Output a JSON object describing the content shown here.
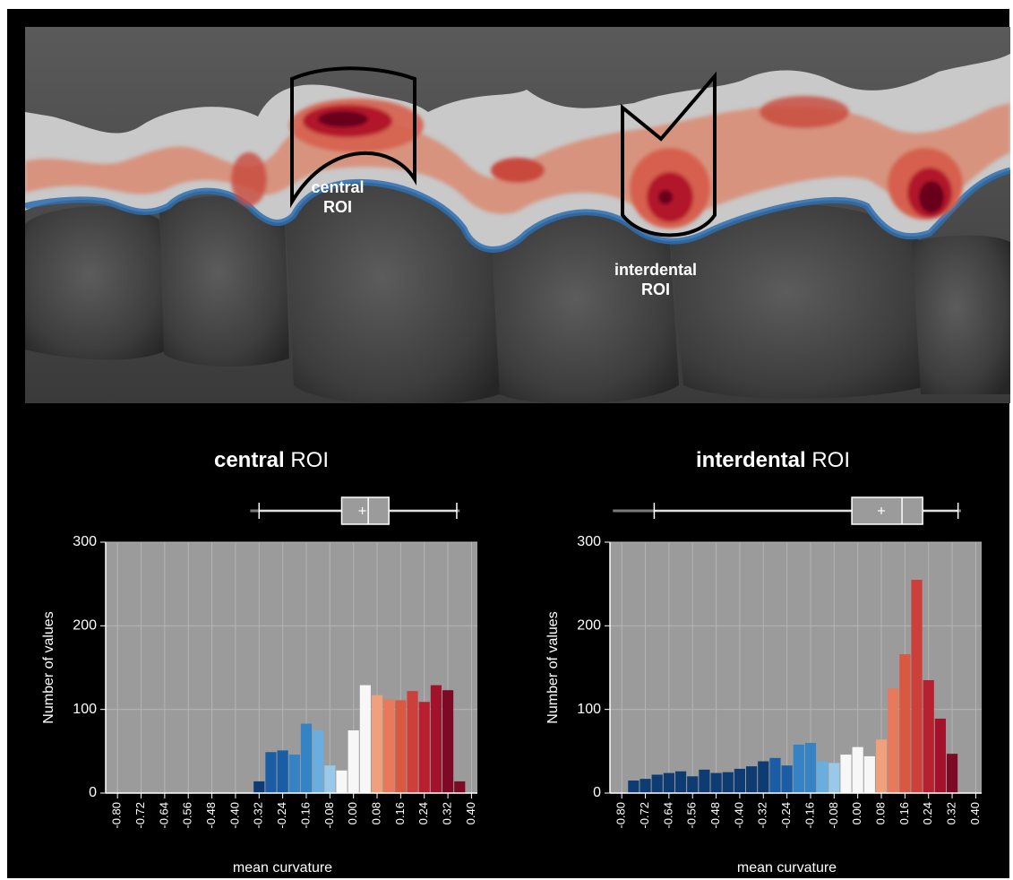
{
  "image": {
    "rois": [
      {
        "line1": "central",
        "line2": "ROI"
      },
      {
        "line1": "interdental",
        "line2": "ROI"
      }
    ]
  },
  "chart_data": [
    {
      "type": "bar",
      "title_bold": "central",
      "title_rest": " ROI",
      "xlabel": "mean curvature",
      "ylabel": "Number of values",
      "xlim": [
        -0.84,
        0.42
      ],
      "ylim": [
        0,
        300
      ],
      "xticks": [
        "-0.80",
        "-0.72",
        "-0.64",
        "-0.56",
        "-0.48",
        "-0.40",
        "-0.32",
        "-0.24",
        "-0.16",
        "-0.08",
        "0.00",
        "0.08",
        "0.16",
        "0.24",
        "0.32",
        "0.40"
      ],
      "yticks": [
        "0",
        "100",
        "200",
        "300"
      ],
      "grid": true,
      "bin_width": 0.04,
      "bins": [
        {
          "x": -0.32,
          "value": 14,
          "color": "#0d3b72"
        },
        {
          "x": -0.28,
          "value": 49,
          "color": "#1b5da4"
        },
        {
          "x": -0.24,
          "value": 51,
          "color": "#1b5da4"
        },
        {
          "x": -0.2,
          "value": 46,
          "color": "#3582c4"
        },
        {
          "x": -0.16,
          "value": 83,
          "color": "#3582c4"
        },
        {
          "x": -0.12,
          "value": 75,
          "color": "#6aaee0"
        },
        {
          "x": -0.08,
          "value": 33,
          "color": "#9ac8e8"
        },
        {
          "x": -0.04,
          "value": 27,
          "color": "#f7f7f7"
        },
        {
          "x": 0.0,
          "value": 75,
          "color": "#f7f7f7"
        },
        {
          "x": 0.04,
          "value": 129,
          "color": "#f7f7f7"
        },
        {
          "x": 0.08,
          "value": 117,
          "color": "#f0a07a"
        },
        {
          "x": 0.12,
          "value": 112,
          "color": "#e8795a"
        },
        {
          "x": 0.16,
          "value": 111,
          "color": "#d85842"
        },
        {
          "x": 0.2,
          "value": 122,
          "color": "#cd3f3a"
        },
        {
          "x": 0.24,
          "value": 109,
          "color": "#b8202f"
        },
        {
          "x": 0.28,
          "value": 129,
          "color": "#a3122b"
        },
        {
          "x": 0.32,
          "value": 123,
          "color": "#7d0a24"
        },
        {
          "x": 0.36,
          "value": 14,
          "color": "#7d0a24"
        }
      ],
      "boxplot": {
        "whisker_low": -0.32,
        "q1": -0.04,
        "median": 0.05,
        "mean": 0.03,
        "q3": 0.12,
        "whisker_high": 0.35,
        "range": [
          -0.35,
          0.36
        ]
      }
    },
    {
      "type": "bar",
      "title_bold": "interdental",
      "title_rest": " ROI",
      "xlabel": "mean curvature",
      "ylabel": "Number of values",
      "xlim": [
        -0.84,
        0.42
      ],
      "ylim": [
        0,
        300
      ],
      "xticks": [
        "-0.80",
        "-0.72",
        "-0.64",
        "-0.56",
        "-0.48",
        "-0.40",
        "-0.32",
        "-0.24",
        "-0.16",
        "-0.08",
        "0.00",
        "0.08",
        "0.16",
        "0.24",
        "0.32",
        "0.40"
      ],
      "yticks": [
        "0",
        "100",
        "200",
        "300"
      ],
      "grid": true,
      "bin_width": 0.04,
      "bins": [
        {
          "x": -0.76,
          "value": 15,
          "color": "#0d3b72"
        },
        {
          "x": -0.72,
          "value": 17,
          "color": "#0d3b72"
        },
        {
          "x": -0.68,
          "value": 22,
          "color": "#0d3b72"
        },
        {
          "x": -0.64,
          "value": 24,
          "color": "#0d3b72"
        },
        {
          "x": -0.6,
          "value": 26,
          "color": "#0d3b72"
        },
        {
          "x": -0.56,
          "value": 20,
          "color": "#0d3b72"
        },
        {
          "x": -0.52,
          "value": 28,
          "color": "#0d3b72"
        },
        {
          "x": -0.48,
          "value": 24,
          "color": "#0d3b72"
        },
        {
          "x": -0.44,
          "value": 25,
          "color": "#0d3b72"
        },
        {
          "x": -0.4,
          "value": 29,
          "color": "#0d3b72"
        },
        {
          "x": -0.36,
          "value": 32,
          "color": "#0d3b72"
        },
        {
          "x": -0.32,
          "value": 38,
          "color": "#0d3b72"
        },
        {
          "x": -0.28,
          "value": 42,
          "color": "#1b5da4"
        },
        {
          "x": -0.24,
          "value": 33,
          "color": "#1b5da4"
        },
        {
          "x": -0.2,
          "value": 58,
          "color": "#3582c4"
        },
        {
          "x": -0.16,
          "value": 60,
          "color": "#3582c4"
        },
        {
          "x": -0.12,
          "value": 38,
          "color": "#6aaee0"
        },
        {
          "x": -0.08,
          "value": 36,
          "color": "#9ac8e8"
        },
        {
          "x": -0.04,
          "value": 46,
          "color": "#f7f7f7"
        },
        {
          "x": 0.0,
          "value": 55,
          "color": "#f7f7f7"
        },
        {
          "x": 0.04,
          "value": 44,
          "color": "#f7f7f7"
        },
        {
          "x": 0.08,
          "value": 64,
          "color": "#f0a07a"
        },
        {
          "x": 0.12,
          "value": 125,
          "color": "#e8795a"
        },
        {
          "x": 0.16,
          "value": 166,
          "color": "#d85842"
        },
        {
          "x": 0.2,
          "value": 255,
          "color": "#cd3f3a"
        },
        {
          "x": 0.24,
          "value": 135,
          "color": "#b8202f"
        },
        {
          "x": 0.28,
          "value": 89,
          "color": "#a3122b"
        },
        {
          "x": 0.32,
          "value": 47,
          "color": "#7d0a24"
        }
      ],
      "boxplot": {
        "whisker_low": -0.69,
        "q1": -0.02,
        "median": 0.15,
        "mean": 0.08,
        "q3": 0.22,
        "whisker_high": 0.34,
        "range": [
          -0.83,
          0.35
        ]
      }
    }
  ]
}
